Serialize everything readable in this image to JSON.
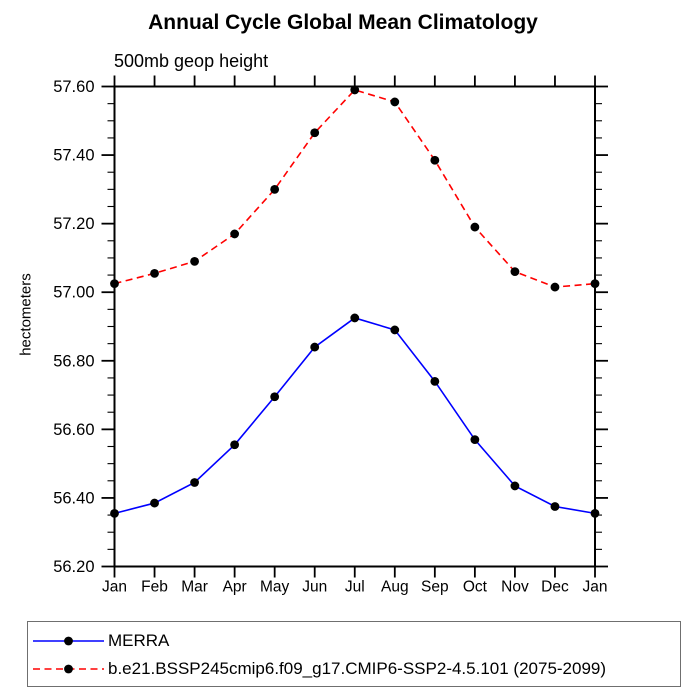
{
  "chart_data": {
    "type": "line",
    "title": "Annual Cycle Global Mean Climatology",
    "subtitle": "500mb geop height",
    "xlabel": "",
    "ylabel": "hectometers",
    "categories": [
      "Jan",
      "Feb",
      "Mar",
      "Apr",
      "May",
      "Jun",
      "Jul",
      "Aug",
      "Sep",
      "Oct",
      "Nov",
      "Dec",
      "Jan"
    ],
    "series": [
      {
        "name": "MERRA",
        "color": "#0000ff",
        "line_style": "solid",
        "marker": "filled-circle",
        "marker_color": "#000000",
        "values": [
          56.355,
          56.385,
          56.445,
          56.555,
          56.695,
          56.84,
          56.925,
          56.89,
          56.74,
          56.57,
          56.435,
          56.375,
          56.355
        ]
      },
      {
        "name": "b.e21.BSSP245cmip6.f09_g17.CMIP6-SSP2-4.5.101 (2075-2099)",
        "color": "#ff0000",
        "line_style": "dashed",
        "marker": "filled-circle",
        "marker_color": "#000000",
        "values": [
          57.025,
          57.055,
          57.09,
          57.17,
          57.3,
          57.465,
          57.59,
          57.555,
          57.385,
          57.19,
          57.06,
          57.015,
          57.025
        ]
      }
    ],
    "ylim": [
      56.2,
      57.6
    ],
    "ytick_interval": 0.2,
    "yminor_interval": 0.05,
    "ytick_labels": [
      "56.20",
      "56.40",
      "56.60",
      "56.80",
      "57.00",
      "57.20",
      "57.40",
      "57.60"
    ],
    "grid": false,
    "legend_position": "bottom",
    "frame_color": "#000000"
  },
  "legend": {
    "items": [
      {
        "label": "MERRA",
        "color": "#0000ff",
        "line_style": "solid"
      },
      {
        "label": "b.e21.BSSP245cmip6.f09_g17.CMIP6-SSP2-4.5.101 (2075-2099)",
        "color": "#ff0000",
        "line_style": "dashed"
      }
    ]
  }
}
